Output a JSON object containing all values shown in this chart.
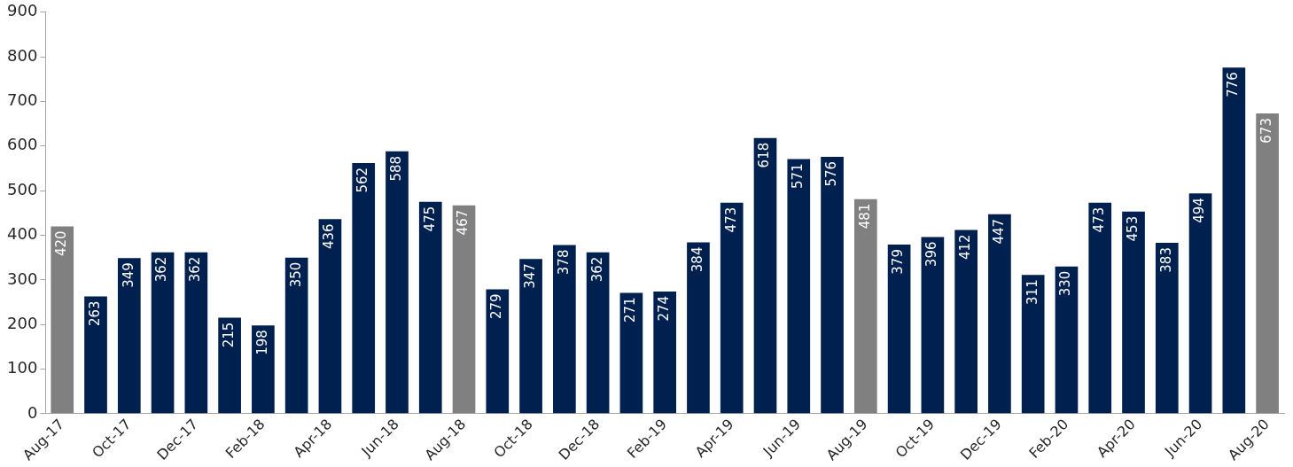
{
  "chart_data": {
    "type": "bar",
    "categories": [
      "Aug-17",
      null,
      "Oct-17",
      null,
      "Dec-17",
      null,
      "Feb-18",
      null,
      "Apr-18",
      null,
      "Jun-18",
      null,
      "Aug-18",
      null,
      "Oct-18",
      null,
      "Dec-18",
      null,
      "Feb-19",
      null,
      "Apr-19",
      null,
      "Jun-19",
      null,
      "Aug-19",
      null,
      "Oct-19",
      null,
      "Dec-19",
      null,
      "Feb-20",
      null,
      "Apr-20",
      null,
      "Jun-20",
      null,
      "Aug-20"
    ],
    "values": [
      420,
      263,
      349,
      362,
      362,
      215,
      198,
      350,
      436,
      562,
      588,
      475,
      467,
      279,
      347,
      378,
      362,
      271,
      274,
      384,
      473,
      618,
      571,
      576,
      481,
      379,
      396,
      412,
      447,
      311,
      330,
      473,
      453,
      383,
      494,
      776,
      673
    ],
    "colors": [
      "#808080",
      "#002050",
      "#002050",
      "#002050",
      "#002050",
      "#002050",
      "#002050",
      "#002050",
      "#002050",
      "#002050",
      "#002050",
      "#002050",
      "#808080",
      "#002050",
      "#002050",
      "#002050",
      "#002050",
      "#002050",
      "#002050",
      "#002050",
      "#002050",
      "#002050",
      "#002050",
      "#002050",
      "#808080",
      "#002050",
      "#002050",
      "#002050",
      "#002050",
      "#002050",
      "#002050",
      "#002050",
      "#002050",
      "#002050",
      "#002050",
      "#002050",
      "#808080"
    ],
    "ylim": [
      0,
      900
    ],
    "yticks": [
      0,
      100,
      200,
      300,
      400,
      500,
      600,
      700,
      800,
      900
    ],
    "grid": false,
    "legend": false,
    "data_labels": true
  }
}
